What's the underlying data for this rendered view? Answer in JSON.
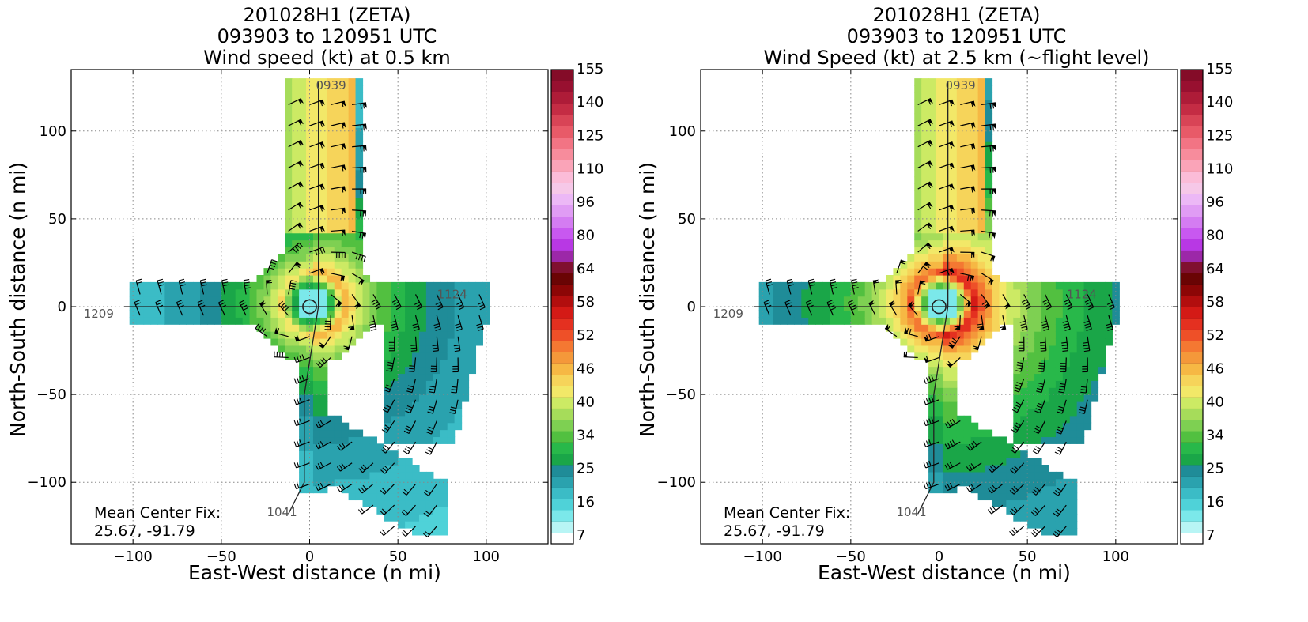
{
  "chart_data": [
    {
      "type": "heatmap",
      "title": [
        "201028H1 (ZETA)",
        "093903 to 120951 UTC",
        "Wind speed (kt) at 0.5 km"
      ],
      "xlabel": "East-West distance (n mi)",
      "ylabel": "North-South distance (n mi)",
      "xlim": [
        -135,
        135
      ],
      "ylim": [
        -135,
        135
      ],
      "xticks": [
        -100,
        -50,
        0,
        50,
        100
      ],
      "yticks": [
        -100,
        -50,
        0,
        50,
        100
      ],
      "grid": true,
      "colorbar": {
        "tick_labels": [
          "7",
          "16",
          "25",
          "34",
          "40",
          "46",
          "52",
          "58",
          "64",
          "80",
          "96",
          "110",
          "125",
          "140",
          "155"
        ],
        "colors": [
          "#ffffff",
          "#b8f5f5",
          "#7be8ea",
          "#4fd2d8",
          "#3bbcc6",
          "#2aa2ae",
          "#1f8c98",
          "#1aa648",
          "#28b84a",
          "#52c040",
          "#7ed052",
          "#a6dc5a",
          "#ccea64",
          "#f2e868",
          "#f6d45a",
          "#f6b844",
          "#f4983a",
          "#f47832",
          "#ee5028",
          "#e43020",
          "#d41a16",
          "#b20e0e",
          "#8c0606",
          "#6a0404",
          "#801030",
          "#9c28a8",
          "#b838e4",
          "#c858f0",
          "#d47cf2",
          "#e09cf4",
          "#ecb8f6",
          "#f6c8e8",
          "#fbbcd8",
          "#faa4b8",
          "#f78c9c",
          "#f27484",
          "#e85a68",
          "#d84456",
          "#c42c44",
          "#ae1c38",
          "#981030",
          "#840c28"
        ]
      },
      "track_labels": [
        "0939",
        "1124",
        "1209",
        "1041"
      ],
      "annotation": {
        "line1": "Mean Center Fix:",
        "line2": "25.67, -91.79"
      }
    },
    {
      "type": "heatmap",
      "title": [
        "201028H1 (ZETA)",
        "093903 to 120951 UTC",
        "Wind Speed (kt) at 2.5 km (~flight level)"
      ],
      "xlabel": "East-West distance (n mi)",
      "ylabel": "North-South distance (n mi)",
      "xlim": [
        -135,
        135
      ],
      "ylim": [
        -135,
        135
      ],
      "xticks": [
        -100,
        -50,
        0,
        50,
        100
      ],
      "yticks": [
        -100,
        -50,
        0,
        50,
        100
      ],
      "grid": true,
      "colorbar": {
        "tick_labels": [
          "7",
          "16",
          "25",
          "34",
          "40",
          "46",
          "52",
          "58",
          "64",
          "80",
          "96",
          "110",
          "125",
          "140",
          "155"
        ],
        "colors": [
          "#ffffff",
          "#b8f5f5",
          "#7be8ea",
          "#4fd2d8",
          "#3bbcc6",
          "#2aa2ae",
          "#1f8c98",
          "#1aa648",
          "#28b84a",
          "#52c040",
          "#7ed052",
          "#a6dc5a",
          "#ccea64",
          "#f2e868",
          "#f6d45a",
          "#f6b844",
          "#f4983a",
          "#f47832",
          "#ee5028",
          "#e43020",
          "#d41a16",
          "#b20e0e",
          "#8c0606",
          "#6a0404",
          "#801030",
          "#9c28a8",
          "#b838e4",
          "#c858f0",
          "#d47cf2",
          "#e09cf4",
          "#ecb8f6",
          "#f6c8e8",
          "#fbbcd8",
          "#faa4b8",
          "#f78c9c",
          "#f27484",
          "#e85a68",
          "#d84456",
          "#c42c44",
          "#ae1c38",
          "#981030",
          "#840c28"
        ]
      },
      "track_labels": [
        "0939",
        "1124",
        "1209",
        "1041"
      ],
      "annotation": {
        "line1": "Mean Center Fix:",
        "line2": "25.67, -91.79"
      }
    }
  ]
}
